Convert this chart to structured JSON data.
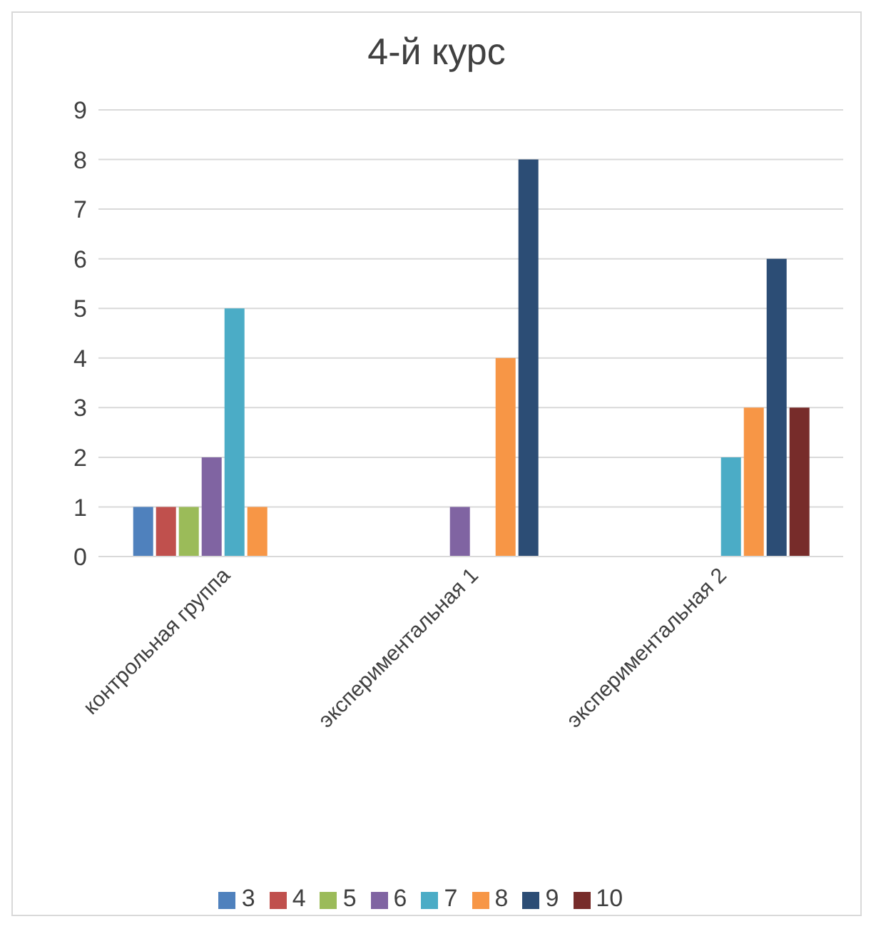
{
  "chart_data": {
    "type": "bar",
    "title": "4-й курс",
    "categories": [
      "контрольная группа",
      "экспериментальная 1",
      "экспериментальная 2"
    ],
    "series": [
      {
        "name": "3",
        "color": "#4f81bd",
        "values": [
          1,
          0,
          0
        ]
      },
      {
        "name": "4",
        "color": "#c0504d",
        "values": [
          1,
          0,
          0
        ]
      },
      {
        "name": "5",
        "color": "#9bbb59",
        "values": [
          1,
          0,
          0
        ]
      },
      {
        "name": "6",
        "color": "#8064a2",
        "values": [
          2,
          1,
          0
        ]
      },
      {
        "name": "7",
        "color": "#4bacc6",
        "values": [
          5,
          0,
          2
        ]
      },
      {
        "name": "8",
        "color": "#f79646",
        "values": [
          1,
          4,
          3
        ]
      },
      {
        "name": "9",
        "color": "#2c4d75",
        "values": [
          0,
          8,
          6
        ]
      },
      {
        "name": "10",
        "color": "#772c2a",
        "values": [
          0,
          0,
          3
        ]
      }
    ],
    "ylim": [
      0,
      9
    ],
    "yticks": [
      0,
      1,
      2,
      3,
      4,
      5,
      6,
      7,
      8,
      9
    ],
    "grid": "y",
    "legend": "bottom"
  }
}
